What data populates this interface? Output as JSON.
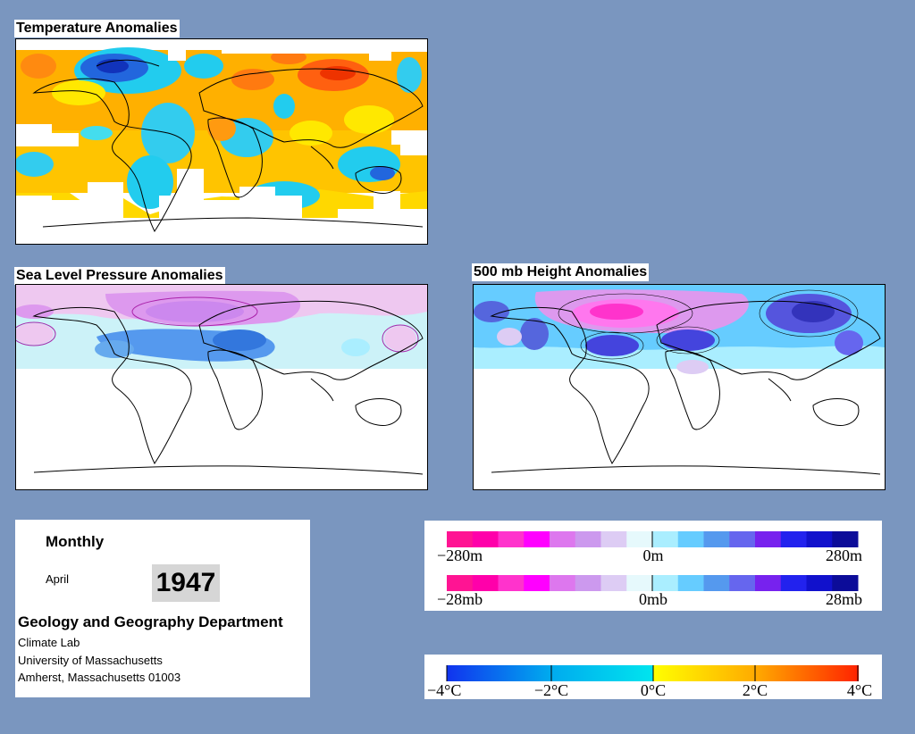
{
  "panels": {
    "temperature": {
      "title": "Temperature Anomalies"
    },
    "slp": {
      "title": "Sea Level Pressure Anomalies"
    },
    "height": {
      "title": "500 mb Height Anomalies"
    }
  },
  "info": {
    "period": "Monthly",
    "month": "April",
    "year": "1947",
    "department": "Geology and Geography Department",
    "lab": "Climate Lab",
    "university": "University of Massachusetts",
    "address": "Amherst, Massachusetts 01003"
  },
  "legend_anomaly": {
    "height_labels": {
      "left": "−280m",
      "mid": "0m",
      "right": "280m"
    },
    "pressure_labels": {
      "left": "−28mb",
      "mid": "0mb",
      "right": "28mb"
    },
    "colors": [
      "#ff1493",
      "#ff00aa",
      "#ff33cc",
      "#ff00ff",
      "#dd77ee",
      "#cc99ee",
      "#ddccf4",
      "#e6f9fc",
      "#aaeeff",
      "#66ccff",
      "#5599ee",
      "#6666ee",
      "#7722ee",
      "#2222ee",
      "#1111cc",
      "#0c0c99"
    ]
  },
  "legend_temp": {
    "labels": [
      "−4°C",
      "−2°C",
      "0°C",
      "2°C",
      "4°C"
    ],
    "cold_colors": [
      "#1133ee",
      "#00aaee",
      "#00e5ee"
    ],
    "warm_colors": [
      "#ffff00",
      "#ffaa00",
      "#ff2200"
    ]
  },
  "colors": {
    "background": "#7a96bf",
    "warm_orange": "#ffb000",
    "warm_yellow": "#ffe800",
    "warm_red": "#ff6010",
    "cool_cyan": "#22ccee",
    "cool_blue": "#2266dd",
    "slp_pink": "#eec8f0",
    "slp_violet": "#cc88ee",
    "slp_light": "#ccf2f8",
    "slp_blue": "#5599ee",
    "h_purple": "#4444dd",
    "h_magenta": "#ff44dd"
  }
}
